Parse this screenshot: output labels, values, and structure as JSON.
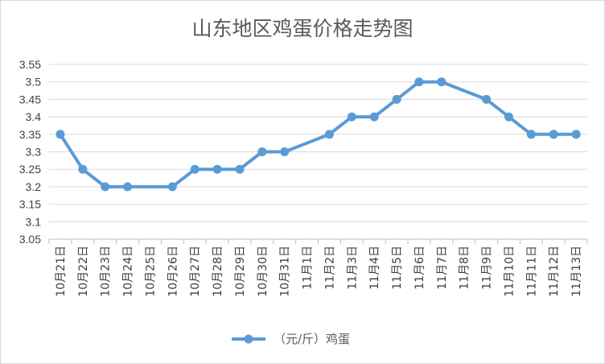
{
  "chart_data": {
    "type": "line",
    "title": "山东地区鸡蛋价格走势图",
    "xlabel": "",
    "ylabel": "",
    "ylim": [
      3.05,
      3.55
    ],
    "ystep": 0.05,
    "ytick_labels": [
      "3.55",
      "3.5",
      "3.45",
      "3.4",
      "3.35",
      "3.3",
      "3.25",
      "3.2",
      "3.15",
      "3.1",
      "3.05"
    ],
    "categories": [
      "10月21日",
      "10月22日",
      "10月23日",
      "10月24日",
      "10月25日",
      "10月26日",
      "10月27日",
      "10月28日",
      "10月29日",
      "10月30日",
      "10月31日",
      "11月1日",
      "11月2日",
      "11月3日",
      "11月4日",
      "11月5日",
      "11月6日",
      "11月7日",
      "11月8日",
      "11月9日",
      "11月10日",
      "11月11日",
      "11月12日",
      "11月13日"
    ],
    "series": [
      {
        "name": "（元/斤）鸡蛋",
        "color": "#5b9bd5",
        "values": [
          3.35,
          3.25,
          3.2,
          3.2,
          null,
          3.2,
          3.25,
          3.25,
          3.25,
          3.3,
          3.3,
          null,
          3.35,
          3.4,
          3.4,
          3.45,
          3.5,
          3.5,
          null,
          3.45,
          3.4,
          3.35,
          3.35,
          3.35
        ]
      }
    ],
    "grid": true,
    "legend_position": "bottom"
  }
}
